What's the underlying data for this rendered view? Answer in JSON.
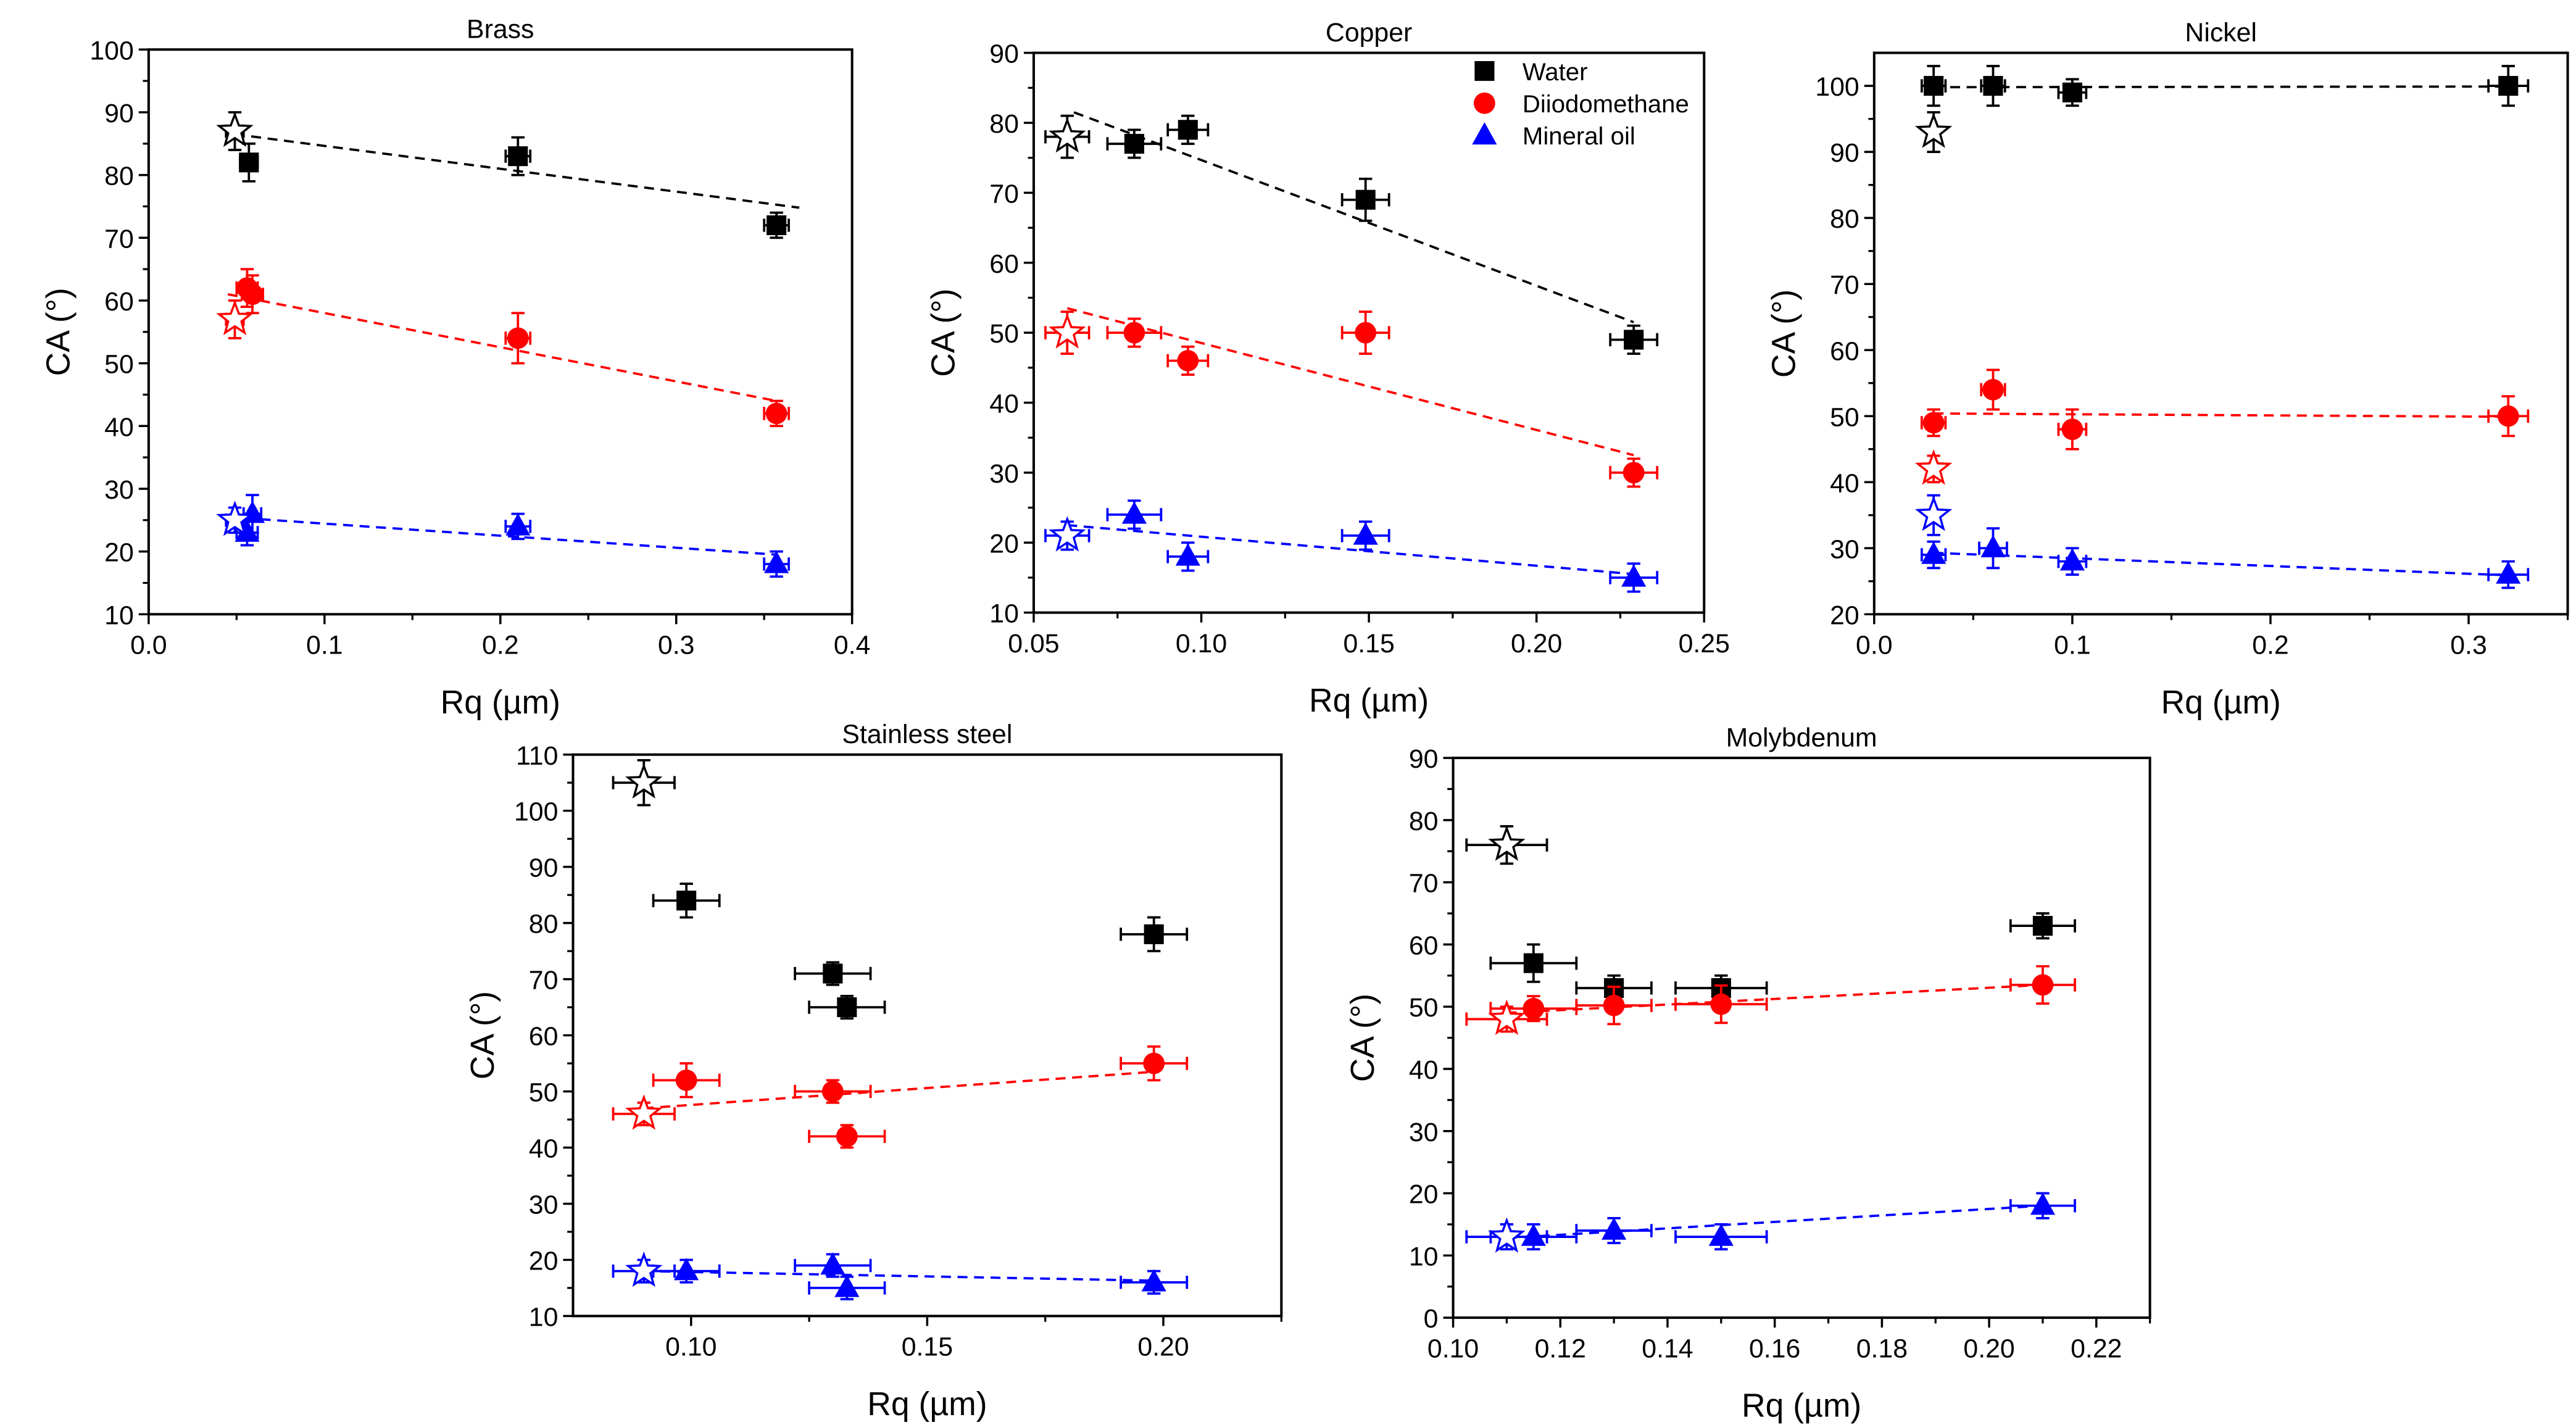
{
  "colors": {
    "Water": "#000000",
    "Diiodomethane": "#ff0000",
    "Mineral oil": "#0000ff"
  },
  "legend": [
    "Water",
    "Diiodomethane",
    "Mineral oil"
  ],
  "chart_data": [
    {
      "type": "scatter",
      "title": "Brass",
      "xlabel": "Rq (µm)",
      "ylabel": "CA (°)",
      "xlim": [
        0,
        0.4
      ],
      "ylim": [
        10,
        100
      ],
      "xticks": [
        0,
        0.1,
        0.2,
        0.3,
        0.4
      ],
      "xtick_labels": [
        "0.0",
        "0.1",
        "0.2",
        "0.3",
        "0.4"
      ],
      "yticks": [
        10,
        20,
        30,
        40,
        50,
        60,
        70,
        80,
        90,
        100
      ],
      "ytick_labels": [
        "10",
        "20",
        "30",
        "40",
        "50",
        "60",
        "70",
        "80",
        "90",
        "100"
      ],
      "series": [
        {
          "name": "Water",
          "points": [
            [
              0.057,
              82,
              0.005,
              3
            ],
            [
              0.21,
              83,
              0.007,
              3
            ],
            [
              0.357,
              72,
              0.007,
              2
            ]
          ],
          "reference": [
            0.049,
            87,
            0.005,
            3
          ],
          "fit": [
            [
              0.049,
              86.5
            ],
            [
              0.37,
              74.8
            ]
          ]
        },
        {
          "name": "Diiodomethane",
          "points": [
            [
              0.056,
              62,
              0.006,
              3
            ],
            [
              0.059,
              61,
              0.006,
              3
            ],
            [
              0.21,
              54,
              0.007,
              4
            ],
            [
              0.357,
              42,
              0.007,
              2
            ]
          ],
          "reference": [
            0.049,
            57,
            0.005,
            3
          ],
          "fit": [
            [
              0.045,
              61
            ],
            [
              0.357,
              44
            ]
          ]
        },
        {
          "name": "Mineral oil",
          "points": [
            [
              0.056,
              23,
              0.006,
              2
            ],
            [
              0.059,
              26,
              0.005,
              3
            ],
            [
              0.21,
              24,
              0.007,
              2
            ],
            [
              0.357,
              18,
              0.007,
              2
            ]
          ],
          "reference": [
            0.049,
            25,
            0.005,
            2
          ],
          "fit": [
            [
              0.045,
              25.5
            ],
            [
              0.357,
              19.5
            ]
          ]
        }
      ]
    },
    {
      "type": "scatter",
      "title": "Copper",
      "xlabel": "Rq (µm)",
      "ylabel": "CA (°)",
      "xlim": [
        0.05,
        0.25
      ],
      "ylim": [
        10,
        90
      ],
      "legend": "top-right",
      "xticks": [
        0.05,
        0.1,
        0.15,
        0.2,
        0.25
      ],
      "xtick_labels": [
        "0.05",
        "0.10",
        "0.15",
        "0.20",
        "0.25"
      ],
      "yticks": [
        10,
        20,
        30,
        40,
        50,
        60,
        70,
        80,
        90
      ],
      "ytick_labels": [
        "10",
        "20",
        "30",
        "40",
        "50",
        "60",
        "70",
        "80",
        "90"
      ],
      "series": [
        {
          "name": "Water",
          "points": [
            [
              0.08,
              77,
              0.008,
              2
            ],
            [
              0.096,
              79,
              0.006,
              2
            ],
            [
              0.149,
              69,
              0.007,
              3
            ],
            [
              0.229,
              49,
              0.007,
              2
            ]
          ],
          "reference": [
            0.06,
            78,
            0.0065,
            3
          ],
          "fit": [
            [
              0.062,
              81.5
            ],
            [
              0.229,
              51.5
            ]
          ]
        },
        {
          "name": "Diiodomethane",
          "points": [
            [
              0.08,
              50,
              0.008,
              2
            ],
            [
              0.096,
              46,
              0.006,
              2
            ],
            [
              0.149,
              50,
              0.007,
              3
            ],
            [
              0.229,
              30,
              0.007,
              2
            ]
          ],
          "reference": [
            0.06,
            50,
            0.0065,
            3
          ],
          "fit": [
            [
              0.06,
              53.5
            ],
            [
              0.229,
              32.5
            ]
          ]
        },
        {
          "name": "Mineral oil",
          "points": [
            [
              0.08,
              24,
              0.008,
              2
            ],
            [
              0.096,
              18,
              0.006,
              2
            ],
            [
              0.149,
              21,
              0.007,
              2
            ],
            [
              0.229,
              15,
              0.007,
              2
            ]
          ],
          "reference": [
            0.06,
            21,
            0.0065,
            2
          ],
          "fit": [
            [
              0.06,
              22.5
            ],
            [
              0.229,
              15.5
            ]
          ]
        }
      ]
    },
    {
      "type": "scatter",
      "title": "Nickel",
      "xlabel": "Rq (µm)",
      "ylabel": "CA (°)",
      "xlim": [
        0,
        0.35
      ],
      "ylim": [
        20,
        105
      ],
      "xticks": [
        0,
        0.1,
        0.2,
        0.3
      ],
      "xtick_labels": [
        "0.0",
        "0.1",
        "0.2",
        "0.3"
      ],
      "yticks": [
        20,
        30,
        40,
        50,
        60,
        70,
        80,
        90,
        100
      ],
      "ytick_labels": [
        "20",
        "30",
        "40",
        "50",
        "60",
        "70",
        "80",
        "90",
        "100"
      ],
      "series": [
        {
          "name": "Water",
          "points": [
            [
              0.03,
              100,
              0.006,
              3
            ],
            [
              0.06,
              100,
              0.006,
              3
            ],
            [
              0.1,
              99,
              0.007,
              2
            ],
            [
              0.32,
              100,
              0.01,
              3
            ]
          ],
          "reference": [
            0.03,
            93,
            0,
            3
          ],
          "fit": [
            [
              0.03,
              99.8
            ],
            [
              0.32,
              99.9
            ]
          ]
        },
        {
          "name": "Diiodomethane",
          "points": [
            [
              0.03,
              49,
              0.006,
              2
            ],
            [
              0.06,
              54,
              0.006,
              3
            ],
            [
              0.1,
              48,
              0.007,
              3
            ],
            [
              0.32,
              50,
              0.01,
              3
            ]
          ],
          "reference": [
            0.03,
            42,
            0,
            2
          ],
          "fit": [
            [
              0.03,
              50.4
            ],
            [
              0.32,
              49.9
            ]
          ]
        },
        {
          "name": "Mineral oil",
          "points": [
            [
              0.03,
              29,
              0.006,
              2
            ],
            [
              0.06,
              30,
              0.007,
              3
            ],
            [
              0.1,
              28,
              0.007,
              2
            ],
            [
              0.32,
              26,
              0.01,
              2
            ]
          ],
          "reference": [
            0.03,
            35,
            0,
            3
          ],
          "fit": [
            [
              0.03,
              29.3
            ],
            [
              0.32,
              25.9
            ]
          ]
        }
      ]
    },
    {
      "type": "scatter",
      "title": "Stainless steel",
      "xlabel": "Rq (µm)",
      "ylabel": "CA (°)",
      "xlim": [
        0.075,
        0.225
      ],
      "ylim": [
        10,
        110
      ],
      "xticks": [
        0.1,
        0.15,
        0.2
      ],
      "xtick_labels": [
        "0.10",
        "0.15",
        "0.20"
      ],
      "yticks": [
        10,
        20,
        30,
        40,
        50,
        60,
        70,
        80,
        90,
        100,
        110
      ],
      "ytick_labels": [
        "10",
        "20",
        "30",
        "40",
        "50",
        "60",
        "70",
        "80",
        "90",
        "100",
        "110"
      ],
      "series": [
        {
          "name": "Water",
          "points": [
            [
              0.099,
              84,
              0.007,
              3
            ],
            [
              0.13,
              71,
              0.008,
              2
            ],
            [
              0.133,
              65,
              0.008,
              2
            ],
            [
              0.198,
              78,
              0.007,
              3
            ]
          ],
          "reference": [
            0.09,
            105,
            0.0065,
            4
          ],
          "fit": null
        },
        {
          "name": "Diiodomethane",
          "points": [
            [
              0.099,
              52,
              0.007,
              3
            ],
            [
              0.13,
              50,
              0.008,
              2
            ],
            [
              0.133,
              42,
              0.008,
              2
            ],
            [
              0.198,
              55,
              0.007,
              3
            ]
          ],
          "reference": [
            0.09,
            46,
            0.0065,
            2
          ],
          "fit": [
            [
              0.09,
              47
            ],
            [
              0.198,
              53.5
            ]
          ]
        },
        {
          "name": "Mineral oil",
          "points": [
            [
              0.099,
              18,
              0.007,
              2
            ],
            [
              0.13,
              19,
              0.008,
              2
            ],
            [
              0.133,
              15,
              0.008,
              2
            ],
            [
              0.198,
              16,
              0.007,
              2
            ]
          ],
          "reference": [
            0.09,
            18,
            0.0065,
            2
          ],
          "fit": [
            [
              0.09,
              18
            ],
            [
              0.198,
              16.3
            ]
          ]
        }
      ]
    },
    {
      "type": "scatter",
      "title": "Molybdenum",
      "xlabel": "Rq (µm)",
      "ylabel": "CA (°)",
      "xlim": [
        0.1,
        0.23
      ],
      "ylim": [
        0,
        90
      ],
      "xticks": [
        0.1,
        0.12,
        0.14,
        0.16,
        0.18,
        0.2,
        0.22
      ],
      "xtick_labels": [
        "0.10",
        "0.12",
        "0.14",
        "0.16",
        "0.18",
        "0.20",
        "0.22"
      ],
      "yticks": [
        0,
        10,
        20,
        30,
        40,
        50,
        60,
        70,
        80,
        90
      ],
      "ytick_labels": [
        "0",
        "10",
        "20",
        "30",
        "40",
        "50",
        "60",
        "70",
        "80",
        "90"
      ],
      "series": [
        {
          "name": "Water",
          "points": [
            [
              0.115,
              57,
              0.008,
              3
            ],
            [
              0.13,
              53,
              0.007,
              2
            ],
            [
              0.15,
              53,
              0.0085,
              2
            ],
            [
              0.21,
              63,
              0.006,
              2
            ]
          ],
          "reference": [
            0.11,
            76,
            0.0075,
            3
          ],
          "fit": null
        },
        {
          "name": "Diiodomethane",
          "points": [
            [
              0.115,
              49.7,
              0.008,
              2
            ],
            [
              0.13,
              50.2,
              0.007,
              3
            ],
            [
              0.15,
              50.4,
              0.0085,
              3
            ],
            [
              0.21,
              53.5,
              0.006,
              3
            ]
          ],
          "reference": [
            0.11,
            48,
            0.0075,
            2
          ],
          "fit": [
            [
              0.11,
              49
            ],
            [
              0.21,
              53.5
            ]
          ]
        },
        {
          "name": "Mineral oil",
          "points": [
            [
              0.115,
              13,
              0.008,
              2
            ],
            [
              0.13,
              14,
              0.007,
              2
            ],
            [
              0.15,
              13,
              0.0085,
              2
            ],
            [
              0.21,
              18,
              0.006,
              2
            ]
          ],
          "reference": [
            0.11,
            13,
            0.0075,
            2
          ],
          "fit": [
            [
              0.11,
              12.8
            ],
            [
              0.21,
              18
            ]
          ]
        }
      ]
    }
  ]
}
